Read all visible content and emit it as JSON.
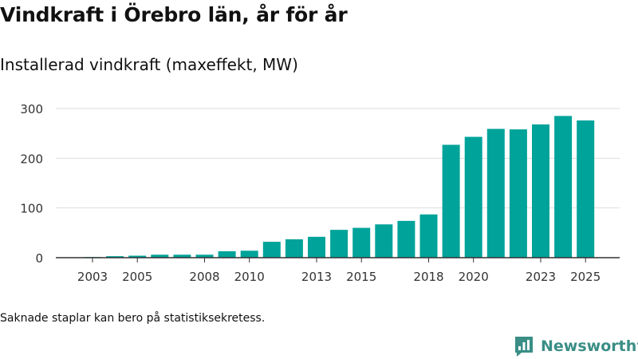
{
  "header": {
    "title": "Vindkraft i Örebro län, år för år",
    "subtitle": "Installerad vindkraft (maxeffekt, MW)"
  },
  "footer": {
    "note": "Saknade staplar kan bero på statistiksekretess.",
    "brand": "Newsworthy"
  },
  "colors": {
    "bar": "#00a39a",
    "grid": "#dddddd",
    "axis": "#333333",
    "text": "#333333",
    "brand": "#3a8e86"
  },
  "chart_data": {
    "type": "bar",
    "title": "Vindkraft i Örebro län, år för år",
    "subtitle": "Installerad vindkraft (maxeffekt, MW)",
    "xlabel": "",
    "ylabel": "MW",
    "categories": [
      "2003",
      "2004",
      "2005",
      "2006",
      "2007",
      "2008",
      "2009",
      "2010",
      "2011",
      "2012",
      "2013",
      "2014",
      "2015",
      "2016",
      "2017",
      "2018",
      "2019",
      "2020",
      "2021",
      "2022",
      "2023",
      "2024",
      "2025"
    ],
    "values": [
      1,
      3,
      4,
      6,
      6,
      6,
      13,
      14,
      32,
      37,
      42,
      56,
      60,
      67,
      74,
      87,
      227,
      243,
      259,
      258,
      268,
      285,
      276
    ],
    "x_tick_labels": [
      "2003",
      "2005",
      "2008",
      "2010",
      "2013",
      "2015",
      "2018",
      "2020",
      "2023",
      "2025"
    ],
    "y_ticks": [
      0,
      100,
      200,
      300
    ],
    "ylim": [
      0,
      300
    ],
    "grid": true
  }
}
